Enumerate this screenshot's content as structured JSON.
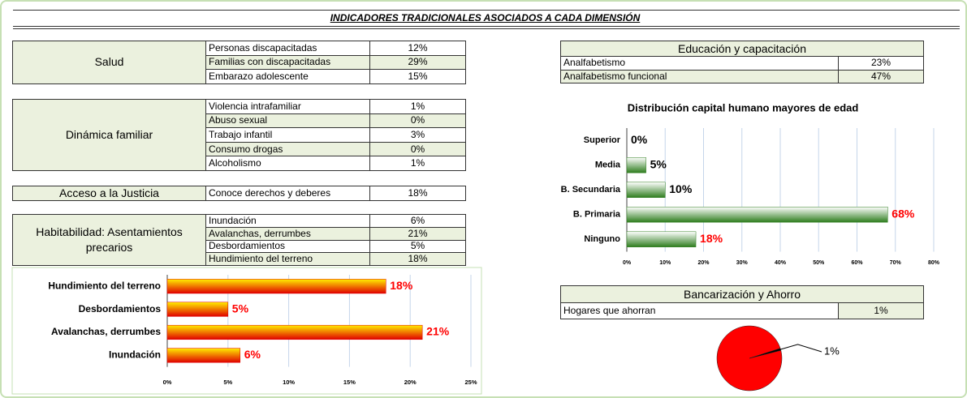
{
  "title": "INDICADORES TRADICIONALES ASOCIADOS A CADA DIMENSIÓN",
  "tables": [
    {
      "heading": "Salud",
      "rows": [
        [
          "Personas discapacitadas",
          "12%"
        ],
        [
          "Familias con  discapacitadas",
          "29%"
        ],
        [
          "Embarazo adolescente",
          "15%"
        ]
      ]
    },
    {
      "heading": "Dinámica familiar",
      "rows": [
        [
          "Violencia intrafamiliar",
          "1%"
        ],
        [
          "Abuso sexual",
          "0%"
        ],
        [
          "Trabajo infantil",
          "3%"
        ],
        [
          "Consumo drogas",
          "0%"
        ],
        [
          "Alcoholismo",
          "1%"
        ]
      ]
    },
    {
      "heading": "Acceso a la Justicia",
      "rows": [
        [
          "Conoce derechos y deberes",
          "18%"
        ]
      ]
    },
    {
      "heading": "Habitabilidad: Asentamientos precarios",
      "rows": [
        [
          "Inundación",
          "6%"
        ],
        [
          "Avalanchas, derrumbes",
          "21%"
        ],
        [
          "Desbordamientos",
          "5%"
        ],
        [
          "Hundimiento del terreno",
          "18%"
        ]
      ]
    },
    {
      "heading": "Educación y capacitación",
      "rows": [
        [
          "Analfabetismo",
          "23%"
        ],
        [
          "Analfabetismo funcional",
          "47%"
        ]
      ]
    },
    {
      "heading": "Bancarización y Ahorro",
      "rows": [
        [
          "Hogares que ahorran",
          "1%"
        ]
      ]
    }
  ],
  "chart_data": [
    {
      "type": "bar",
      "orientation": "horizontal",
      "title": "Distribución capital humano mayores de edad",
      "categories": [
        "Superior",
        "Media",
        "B. Secundaria",
        "B. Primaria",
        "Ninguno"
      ],
      "values": [
        0,
        5,
        10,
        68,
        18
      ],
      "value_labels": [
        "0%",
        "5%",
        "10%",
        "68%",
        "18%"
      ],
      "value_label_colors": [
        "#000000",
        "#000000",
        "#000000",
        "#ff0000",
        "#ff0000"
      ],
      "gradient": [
        "#ffffff",
        "#2e7d1e"
      ],
      "xlim": [
        0,
        80
      ],
      "xticks": [
        {
          "value": 0,
          "label": "0%"
        },
        {
          "value": 10,
          "label": "10%"
        },
        {
          "value": 20,
          "label": "20%"
        },
        {
          "value": 30,
          "label": "30%"
        },
        {
          "value": 40,
          "label": "40%"
        },
        {
          "value": 50,
          "label": "50%"
        },
        {
          "value": 60,
          "label": "60%"
        },
        {
          "value": 70,
          "label": "70%"
        },
        {
          "value": 80,
          "label": "80%"
        }
      ],
      "grid": true
    },
    {
      "type": "bar",
      "orientation": "horizontal",
      "categories": [
        "Hundimiento del terreno",
        "Desbordamientos",
        "Avalanchas, derrumbes",
        "Inundación"
      ],
      "values": [
        18,
        5,
        21,
        6
      ],
      "value_labels": [
        "18%",
        "5%",
        "21%",
        "6%"
      ],
      "value_label_colors": [
        "#ff0000",
        "#ff0000",
        "#ff0000",
        "#ff0000"
      ],
      "gradient": [
        "#ffee00",
        "#e00000"
      ],
      "xlim": [
        0,
        25
      ],
      "xticks": [
        {
          "value": 0,
          "label": "0%"
        },
        {
          "value": 5,
          "label": "5%"
        },
        {
          "value": 10,
          "label": "10%"
        },
        {
          "value": 15,
          "label": "15%"
        },
        {
          "value": 20,
          "label": "20%"
        },
        {
          "value": 25,
          "label": "25%"
        }
      ],
      "grid": true
    },
    {
      "type": "pie",
      "values": [
        99,
        1
      ],
      "value_labels": [
        null,
        "1%"
      ],
      "colors": [
        "#ff0000",
        "#000000"
      ]
    }
  ]
}
